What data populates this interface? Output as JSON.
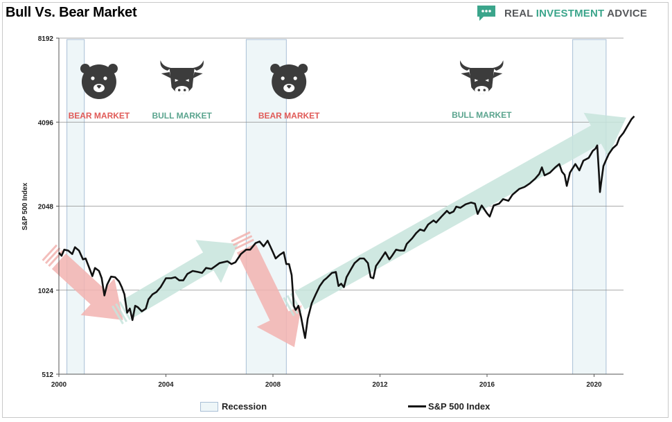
{
  "title": "Bull Vs. Bear Market",
  "brand": {
    "name_part1": "REAL ",
    "name_accent": "INVESTMENT",
    "name_part2": " ADVICE",
    "icon": "chat-bubble-logo-icon",
    "accent_color": "#3ba58b"
  },
  "chart_data": {
    "type": "line",
    "title": "Bull Vs. Bear Market",
    "xlabel": "",
    "ylabel": "S&P 500 Index",
    "y_scale": "log2",
    "ylim": [
      512,
      8192
    ],
    "xlim": [
      2000,
      2021.1
    ],
    "y_ticks": [
      512,
      1024,
      2048,
      4096,
      8192
    ],
    "y_tick_labels": [
      "512",
      "1024",
      "2048",
      "4096",
      "8192"
    ],
    "x_ticks": [
      2000,
      2004,
      2008,
      2012,
      2016,
      2020
    ],
    "x_tick_labels": [
      "2000",
      "2004",
      "2008",
      "2012",
      "2016",
      "2020"
    ],
    "grid": "horizontal",
    "legend": {
      "position": "bottom",
      "entries": [
        "Recession",
        "S&P 500 Index"
      ]
    },
    "recessions": [
      {
        "start": 2000.3,
        "end": 2000.95
      },
      {
        "start": 2007.0,
        "end": 2008.5
      },
      {
        "start": 2019.2,
        "end": 2020.45
      }
    ],
    "phases": [
      {
        "label": "BEAR MARKET",
        "kind": "bear",
        "x": 2001.5,
        "arrow": {
          "from": [
            2000.0,
            1300
          ],
          "to": [
            2002.4,
            800
          ]
        }
      },
      {
        "label": "BULL MARKET",
        "kind": "bull",
        "x": 2004.6,
        "arrow": {
          "from": [
            2002.6,
            880
          ],
          "to": [
            2006.7,
            1500
          ]
        }
      },
      {
        "label": "BEAR MARKET",
        "kind": "bear",
        "x": 2008.6,
        "arrow": {
          "from": [
            2007.0,
            1450
          ],
          "to": [
            2008.8,
            640
          ]
        }
      },
      {
        "label": "BULL MARKET",
        "kind": "bull",
        "x": 2015.8,
        "arrow": {
          "from": [
            2009.0,
            940
          ],
          "to": [
            2021.2,
            4250
          ]
        }
      }
    ],
    "series": [
      {
        "name": "S&P 500 Index",
        "color": "#111111",
        "points": [
          [
            2000.0,
            1394
          ],
          [
            2000.1,
            1360
          ],
          [
            2000.2,
            1430
          ],
          [
            2000.35,
            1420
          ],
          [
            2000.5,
            1380
          ],
          [
            2000.6,
            1460
          ],
          [
            2000.75,
            1420
          ],
          [
            2000.9,
            1320
          ],
          [
            2001.0,
            1330
          ],
          [
            2001.15,
            1220
          ],
          [
            2001.25,
            1150
          ],
          [
            2001.35,
            1230
          ],
          [
            2001.5,
            1200
          ],
          [
            2001.6,
            1130
          ],
          [
            2001.7,
            980
          ],
          [
            2001.8,
            1070
          ],
          [
            2001.95,
            1145
          ],
          [
            2002.1,
            1140
          ],
          [
            2002.25,
            1100
          ],
          [
            2002.35,
            1050
          ],
          [
            2002.45,
            990
          ],
          [
            2002.55,
            850
          ],
          [
            2002.65,
            880
          ],
          [
            2002.75,
            800
          ],
          [
            2002.85,
            900
          ],
          [
            2002.95,
            890
          ],
          [
            2003.1,
            860
          ],
          [
            2003.25,
            880
          ],
          [
            2003.35,
            950
          ],
          [
            2003.5,
            990
          ],
          [
            2003.65,
            1010
          ],
          [
            2003.8,
            1050
          ],
          [
            2004.0,
            1130
          ],
          [
            2004.2,
            1130
          ],
          [
            2004.35,
            1140
          ],
          [
            2004.5,
            1110
          ],
          [
            2004.65,
            1110
          ],
          [
            2004.8,
            1170
          ],
          [
            2005.0,
            1200
          ],
          [
            2005.2,
            1190
          ],
          [
            2005.35,
            1180
          ],
          [
            2005.5,
            1230
          ],
          [
            2005.7,
            1220
          ],
          [
            2005.85,
            1250
          ],
          [
            2006.0,
            1280
          ],
          [
            2006.3,
            1300
          ],
          [
            2006.45,
            1270
          ],
          [
            2006.6,
            1290
          ],
          [
            2006.8,
            1380
          ],
          [
            2007.0,
            1430
          ],
          [
            2007.15,
            1430
          ],
          [
            2007.35,
            1510
          ],
          [
            2007.5,
            1530
          ],
          [
            2007.65,
            1470
          ],
          [
            2007.8,
            1540
          ],
          [
            2007.9,
            1470
          ],
          [
            2008.0,
            1400
          ],
          [
            2008.1,
            1330
          ],
          [
            2008.25,
            1370
          ],
          [
            2008.4,
            1400
          ],
          [
            2008.5,
            1270
          ],
          [
            2008.6,
            1270
          ],
          [
            2008.7,
            1160
          ],
          [
            2008.78,
            900
          ],
          [
            2008.85,
            870
          ],
          [
            2008.95,
            900
          ],
          [
            2009.05,
            820
          ],
          [
            2009.15,
            730
          ],
          [
            2009.2,
            690
          ],
          [
            2009.3,
            810
          ],
          [
            2009.45,
            920
          ],
          [
            2009.6,
            990
          ],
          [
            2009.75,
            1060
          ],
          [
            2009.9,
            1110
          ],
          [
            2010.0,
            1130
          ],
          [
            2010.2,
            1180
          ],
          [
            2010.35,
            1190
          ],
          [
            2010.45,
            1060
          ],
          [
            2010.55,
            1080
          ],
          [
            2010.65,
            1050
          ],
          [
            2010.75,
            1140
          ],
          [
            2010.9,
            1210
          ],
          [
            2011.05,
            1280
          ],
          [
            2011.25,
            1330
          ],
          [
            2011.4,
            1330
          ],
          [
            2011.55,
            1280
          ],
          [
            2011.65,
            1140
          ],
          [
            2011.75,
            1130
          ],
          [
            2011.85,
            1250
          ],
          [
            2012.0,
            1310
          ],
          [
            2012.2,
            1400
          ],
          [
            2012.35,
            1320
          ],
          [
            2012.45,
            1360
          ],
          [
            2012.6,
            1430
          ],
          [
            2012.75,
            1420
          ],
          [
            2012.9,
            1420
          ],
          [
            2013.0,
            1500
          ],
          [
            2013.2,
            1570
          ],
          [
            2013.35,
            1640
          ],
          [
            2013.5,
            1690
          ],
          [
            2013.65,
            1670
          ],
          [
            2013.8,
            1760
          ],
          [
            2014.0,
            1820
          ],
          [
            2014.1,
            1790
          ],
          [
            2014.3,
            1880
          ],
          [
            2014.5,
            1970
          ],
          [
            2014.6,
            1930
          ],
          [
            2014.75,
            1960
          ],
          [
            2014.85,
            2040
          ],
          [
            2015.0,
            2020
          ],
          [
            2015.2,
            2080
          ],
          [
            2015.4,
            2110
          ],
          [
            2015.55,
            2090
          ],
          [
            2015.65,
            1920
          ],
          [
            2015.8,
            2060
          ],
          [
            2016.0,
            1930
          ],
          [
            2016.1,
            1880
          ],
          [
            2016.25,
            2060
          ],
          [
            2016.45,
            2090
          ],
          [
            2016.6,
            2170
          ],
          [
            2016.8,
            2140
          ],
          [
            2016.95,
            2250
          ],
          [
            2017.2,
            2360
          ],
          [
            2017.4,
            2400
          ],
          [
            2017.6,
            2470
          ],
          [
            2017.8,
            2570
          ],
          [
            2017.95,
            2670
          ],
          [
            2018.05,
            2820
          ],
          [
            2018.15,
            2640
          ],
          [
            2018.35,
            2700
          ],
          [
            2018.55,
            2820
          ],
          [
            2018.7,
            2900
          ],
          [
            2018.8,
            2720
          ],
          [
            2018.9,
            2650
          ],
          [
            2018.98,
            2420
          ],
          [
            2019.1,
            2700
          ],
          [
            2019.3,
            2900
          ],
          [
            2019.45,
            2750
          ],
          [
            2019.6,
            2980
          ],
          [
            2019.8,
            3050
          ],
          [
            2019.95,
            3230
          ],
          [
            2020.05,
            3290
          ],
          [
            2020.12,
            3380
          ],
          [
            2020.18,
            2700
          ],
          [
            2020.22,
            2300
          ],
          [
            2020.27,
            2500
          ],
          [
            2020.35,
            2850
          ],
          [
            2020.45,
            3000
          ],
          [
            2020.55,
            3150
          ],
          [
            2020.7,
            3300
          ],
          [
            2020.85,
            3400
          ],
          [
            2020.95,
            3600
          ],
          [
            2021.1,
            3750
          ],
          [
            2021.25,
            3970
          ],
          [
            2021.4,
            4200
          ],
          [
            2021.5,
            4300
          ]
        ]
      }
    ]
  },
  "colors": {
    "bear": "#e05a57",
    "bull": "#5aa48e",
    "bear_arrow": "#f2b3b0",
    "bull_arrow": "#c7e4dc",
    "recession_fill": "#eef6f8",
    "recession_border": "#a9bfd6",
    "icon": "#3c3c3c"
  }
}
